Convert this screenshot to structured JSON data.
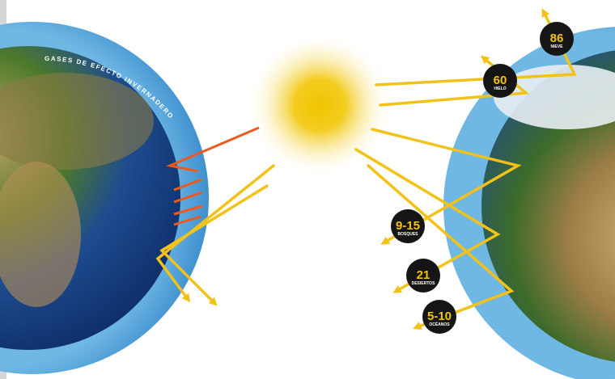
{
  "atmosphere_label": "GASES DE EFECTO INVERNADERO",
  "badges": [
    {
      "value": "86",
      "label": "NIEVE"
    },
    {
      "value": "60",
      "label": "HIELO"
    },
    {
      "value": "9-15",
      "label": "BOSQUES"
    },
    {
      "value": "21",
      "label": "DESIERTOS"
    },
    {
      "value": "5-10",
      "label": "OCÉANOS"
    }
  ]
}
